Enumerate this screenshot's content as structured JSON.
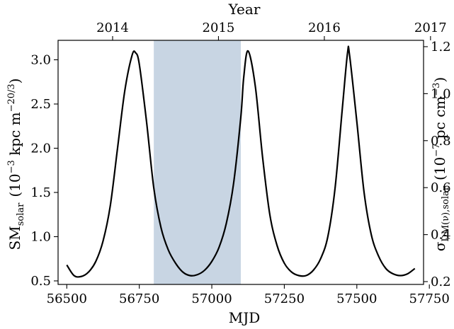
{
  "chart_data": {
    "type": "line",
    "title": "",
    "xlabel": "MJD",
    "top_xlabel": "Year",
    "ylabel": {
      "main": "SM",
      "subscript": "solar",
      "units_prefix": "(10",
      "units_exp": "−3",
      "units_mid": " kpc m",
      "units_exp2": "−20/3",
      "units_close": ")"
    },
    "y2label": {
      "main": "σ",
      "subscript": "DM(ν),solar",
      "units_prefix": "(10",
      "units_exp": "−7",
      "units_mid": " pc cm",
      "units_exp2": "−3",
      "units_close": ")"
    },
    "xlim": [
      56470,
      57730
    ],
    "ylim": [
      0.46,
      3.22
    ],
    "y2lim": [
      0.188,
      1.227
    ],
    "x_ticks": [
      56500,
      56750,
      57000,
      57250,
      57500,
      57750
    ],
    "x_tick_labels": [
      "56500",
      "56750",
      "57000",
      "57250",
      "57500",
      "57750"
    ],
    "y_ticks": [
      0.5,
      1.0,
      1.5,
      2.0,
      2.5,
      3.0
    ],
    "y_tick_labels": [
      "0.5",
      "1.0",
      "1.5",
      "2.0",
      "2.5",
      "3.0"
    ],
    "y2_ticks": [
      0.2,
      0.4,
      0.6,
      0.8,
      1.0,
      1.2
    ],
    "y2_tick_labels": [
      "0.2",
      "0.4",
      "0.6",
      "0.8",
      "1.0",
      "1.2"
    ],
    "top_ticks": [
      56658,
      57023,
      57388,
      57754
    ],
    "top_tick_labels": [
      "2014",
      "2015",
      "2016",
      "2017"
    ],
    "shaded_region": {
      "x": [
        56800,
        57100
      ],
      "color": "#c8d5e3"
    },
    "series": [
      {
        "color": "#000000",
        "x": [
          56500,
          56525,
          56550,
          56575,
          56600,
          56625,
          56650,
          56675,
          56700,
          56725,
          56737,
          56750,
          56775,
          56800,
          56825,
          56850,
          56875,
          56900,
          56925,
          56950,
          56975,
          57000,
          57025,
          57050,
          57075,
          57100,
          57110,
          57125,
          57150,
          57175,
          57200,
          57225,
          57250,
          57275,
          57300,
          57325,
          57350,
          57375,
          57400,
          57425,
          57450,
          57468,
          57475,
          57500,
          57525,
          57550,
          57575,
          57600,
          57625,
          57650,
          57675,
          57700
        ],
        "y": [
          0.68,
          0.56,
          0.55,
          0.6,
          0.72,
          0.95,
          1.35,
          2.0,
          2.65,
          3.05,
          3.08,
          2.95,
          2.3,
          1.55,
          1.1,
          0.85,
          0.7,
          0.6,
          0.56,
          0.57,
          0.62,
          0.72,
          0.88,
          1.15,
          1.6,
          2.35,
          2.8,
          3.1,
          2.7,
          1.9,
          1.25,
          0.9,
          0.7,
          0.6,
          0.56,
          0.56,
          0.62,
          0.75,
          1.0,
          1.55,
          2.45,
          3.08,
          3.05,
          2.3,
          1.5,
          1.02,
          0.78,
          0.64,
          0.58,
          0.56,
          0.58,
          0.64
        ]
      }
    ],
    "grid": false,
    "legend": "none"
  }
}
